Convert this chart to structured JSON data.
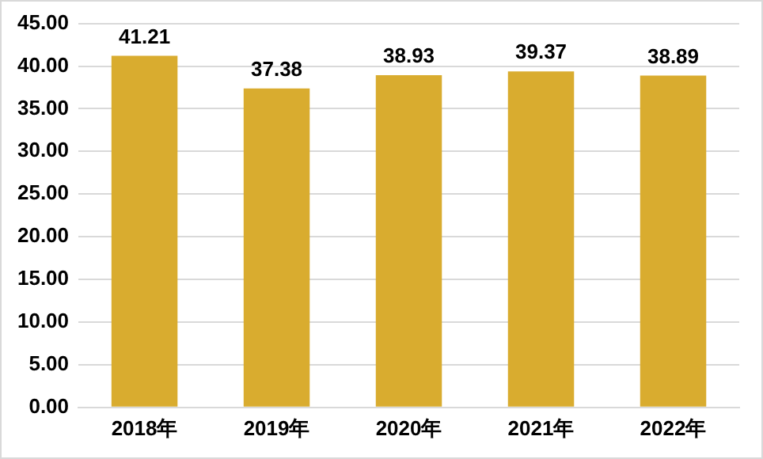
{
  "chart_data": {
    "type": "bar",
    "categories": [
      "2018年",
      "2019年",
      "2020年",
      "2021年",
      "2022年"
    ],
    "values": [
      41.21,
      37.38,
      38.93,
      39.37,
      38.89
    ],
    "color": "#d9ac2f",
    "ylim": [
      0,
      45
    ],
    "yticks": [
      {
        "value": 0,
        "label": "0.00"
      },
      {
        "value": 5,
        "label": "5.00"
      },
      {
        "value": 10,
        "label": "10.00"
      },
      {
        "value": 15,
        "label": "15.00"
      },
      {
        "value": 20,
        "label": "20.00"
      },
      {
        "value": 25,
        "label": "25.00"
      },
      {
        "value": 30,
        "label": "30.00"
      },
      {
        "value": 35,
        "label": "35.00"
      },
      {
        "value": 40,
        "label": "40.00"
      },
      {
        "value": 45,
        "label": "45.00"
      }
    ],
    "grid": "y",
    "data_labels": true
  }
}
